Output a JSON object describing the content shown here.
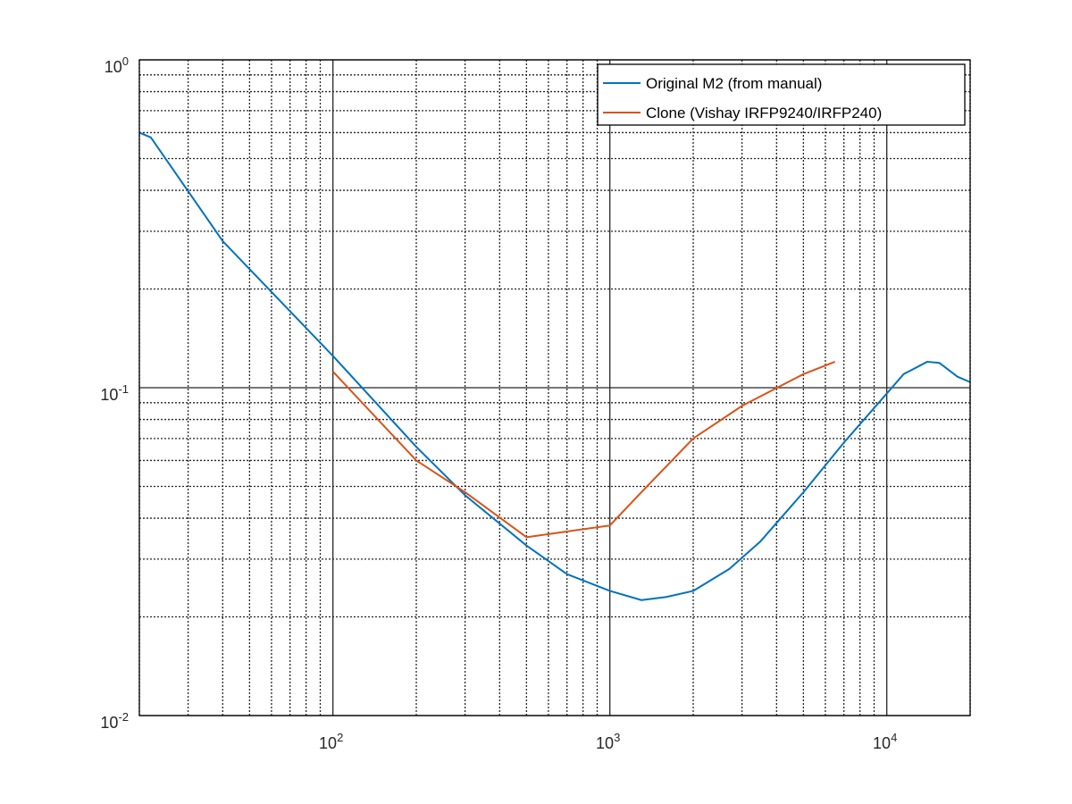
{
  "chart_data": {
    "type": "line",
    "title": "",
    "xlabel": "",
    "ylabel": "",
    "x_scale": "log",
    "y_scale": "log",
    "xlim": [
      20,
      20000
    ],
    "ylim": [
      0.01,
      1
    ],
    "grid": true,
    "minor_grid": true,
    "legend_position": "top-right",
    "x_ticks": [
      {
        "value": 100,
        "base": "10",
        "exp": "2"
      },
      {
        "value": 1000,
        "base": "10",
        "exp": "3"
      },
      {
        "value": 10000,
        "base": "10",
        "exp": "4"
      }
    ],
    "y_ticks": [
      {
        "value": 0.01,
        "base": "10",
        "exp": "-2"
      },
      {
        "value": 0.1,
        "base": "10",
        "exp": "-1"
      },
      {
        "value": 1,
        "base": "10",
        "exp": "0"
      }
    ],
    "series": [
      {
        "name": "Original M2 (from manual)",
        "color": "#0072BD",
        "x": [
          20,
          22,
          40,
          100,
          200,
          300,
          500,
          700,
          1000,
          1300,
          1600,
          2000,
          2700,
          3500,
          5000,
          7000,
          10000,
          11500,
          14000,
          15500,
          18000,
          20000
        ],
        "y": [
          0.6,
          0.58,
          0.28,
          0.125,
          0.066,
          0.047,
          0.033,
          0.027,
          0.024,
          0.0225,
          0.023,
          0.024,
          0.028,
          0.034,
          0.048,
          0.068,
          0.096,
          0.11,
          0.12,
          0.119,
          0.108,
          0.104
        ]
      },
      {
        "name": "Clone (Vishay IRFP9240/IRFP240)",
        "color": "#D95319",
        "x": [
          100,
          200,
          300,
          500,
          1000,
          1300,
          2000,
          3000,
          5000,
          6500
        ],
        "y": [
          0.112,
          0.06,
          0.048,
          0.035,
          0.038,
          0.048,
          0.07,
          0.088,
          0.11,
          0.12
        ]
      }
    ]
  }
}
